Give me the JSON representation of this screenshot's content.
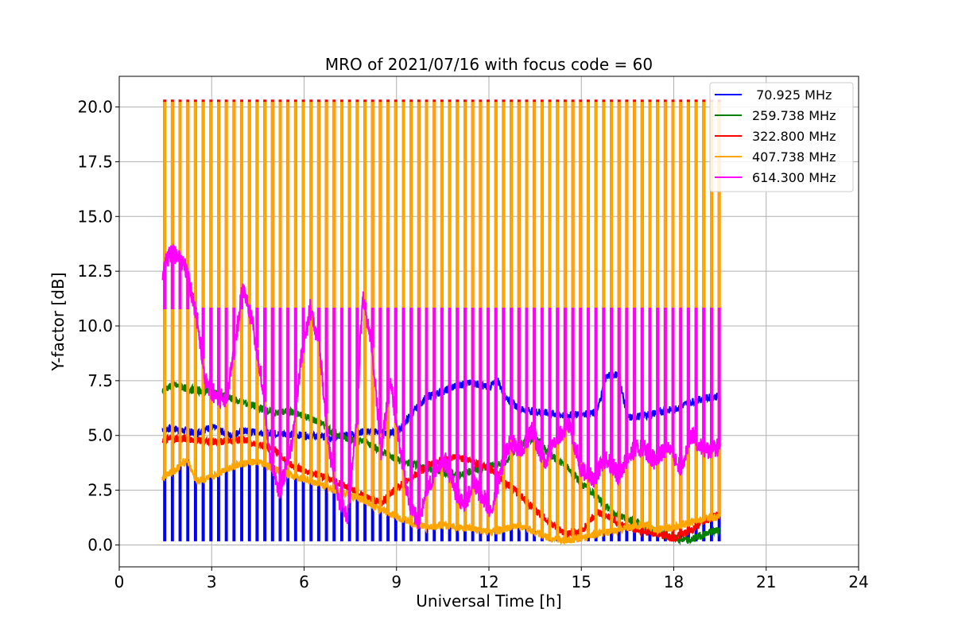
{
  "chart_data": {
    "type": "line",
    "title": "MRO of 2021/07/16 with focus code = 60",
    "xlabel": "Universal Time [h]",
    "ylabel": "Y-factor [dB]",
    "xlim": [
      0,
      24
    ],
    "ylim": [
      -1.0,
      21.4
    ],
    "xticks": [
      0,
      3,
      6,
      9,
      12,
      15,
      18,
      21,
      24
    ],
    "xtick_labels": [
      "0",
      "3",
      "6",
      "9",
      "12",
      "15",
      "18",
      "21",
      "24"
    ],
    "yticks": [
      0.0,
      2.5,
      5.0,
      7.5,
      10.0,
      12.5,
      15.0,
      17.5,
      20.0
    ],
    "ytick_labels": [
      "0.0",
      "2.5",
      "5.0",
      "7.5",
      "10.0",
      "12.5",
      "15.0",
      "17.5",
      "20.0"
    ],
    "grid": true,
    "legend_position": "top-right",
    "spike_times": {
      "start": 1.45,
      "end": 19.5,
      "step": 0.25
    },
    "series": [
      {
        "name": " 70.925 MHz",
        "color": "#0000ff",
        "spike_value": 0.2,
        "x": [
          1.4,
          1.8,
          2.5,
          3.0,
          3.3,
          3.6,
          4.0,
          5.0,
          6.0,
          7.0,
          8.0,
          9.0,
          9.5,
          10.0,
          10.5,
          11.0,
          11.5,
          12.0,
          12.3,
          12.5,
          13.0,
          14.0,
          14.5,
          15.0,
          15.5,
          15.8,
          16.2,
          16.5,
          17.0,
          18.0,
          18.5,
          19.0,
          19.5
        ],
        "y": [
          null,
          5.3,
          5.1,
          5.4,
          5.2,
          5.0,
          5.2,
          5.1,
          5.0,
          4.9,
          5.2,
          5.1,
          6.0,
          6.8,
          7.0,
          7.3,
          7.4,
          7.2,
          7.5,
          6.8,
          6.2,
          6.0,
          5.9,
          6.0,
          6.0,
          7.7,
          7.8,
          5.8,
          5.9,
          6.2,
          6.5,
          6.7,
          6.8
        ]
      },
      {
        "name": "259.738 MHz",
        "color": "#008000",
        "spike_value": null,
        "x": [
          1.4,
          1.8,
          2.3,
          3.0,
          3.8,
          4.5,
          5.0,
          5.5,
          6.0,
          6.5,
          7.0,
          7.5,
          8.0,
          8.5,
          9.0,
          9.5,
          10.0,
          10.5,
          11.0,
          11.5,
          12.0,
          12.5,
          13.0,
          13.5,
          14.0,
          14.5,
          15.0,
          15.5,
          16.0,
          16.5,
          17.0,
          17.5,
          18.0,
          18.5,
          19.0,
          19.5
        ],
        "y": [
          7.1,
          7.3,
          7.1,
          7.0,
          6.6,
          6.3,
          6.0,
          6.1,
          5.9,
          5.6,
          5.1,
          4.8,
          4.7,
          4.3,
          3.9,
          3.7,
          3.5,
          3.3,
          3.2,
          3.4,
          3.6,
          3.7,
          4.6,
          4.9,
          4.1,
          3.6,
          2.8,
          2.2,
          1.5,
          1.2,
          0.9,
          0.6,
          0.3,
          0.2,
          0.5,
          0.7
        ]
      },
      {
        "name": "322.800 MHz",
        "color": "#ff0000",
        "spike_value": 20.3,
        "x": [
          1.4,
          2.0,
          3.0,
          4.0,
          4.5,
          5.0,
          5.5,
          6.0,
          6.5,
          7.0,
          7.5,
          8.0,
          8.5,
          9.0,
          9.5,
          10.0,
          10.5,
          11.0,
          11.5,
          12.0,
          12.5,
          13.0,
          13.5,
          14.0,
          14.5,
          15.0,
          15.5,
          16.0,
          16.5,
          17.0,
          17.5,
          18.0,
          18.5,
          19.0,
          19.5
        ],
        "y": [
          4.8,
          4.9,
          4.7,
          4.8,
          4.6,
          4.4,
          3.7,
          3.4,
          3.2,
          2.9,
          2.6,
          2.2,
          1.9,
          2.6,
          3.1,
          3.6,
          3.9,
          4.0,
          3.8,
          3.5,
          2.9,
          2.3,
          1.6,
          1.0,
          0.5,
          0.6,
          1.5,
          1.2,
          0.8,
          0.6,
          0.5,
          0.3,
          0.6,
          1.1,
          1.4
        ]
      },
      {
        "name": "407.738 MHz",
        "color": "#ffa500",
        "spike_value": 20.2,
        "x": [
          1.4,
          1.8,
          2.2,
          2.5,
          3.0,
          3.5,
          4.0,
          4.5,
          5.0,
          5.5,
          6.0,
          6.5,
          7.0,
          7.5,
          8.0,
          8.5,
          9.0,
          9.5,
          10.0,
          10.5,
          11.0,
          11.5,
          12.0,
          12.5,
          13.0,
          13.5,
          14.0,
          14.5,
          15.0,
          15.5,
          16.0,
          16.5,
          17.0,
          17.5,
          18.0,
          18.5,
          19.0,
          19.5
        ],
        "y": [
          3.1,
          3.4,
          3.9,
          2.9,
          3.1,
          3.5,
          3.7,
          3.8,
          3.5,
          3.2,
          3.0,
          2.8,
          2.5,
          2.3,
          2.0,
          1.6,
          1.3,
          1.0,
          0.8,
          0.9,
          0.8,
          0.7,
          0.6,
          0.7,
          0.9,
          0.6,
          0.3,
          0.2,
          0.3,
          0.5,
          0.6,
          0.8,
          0.9,
          0.7,
          0.8,
          1.0,
          1.2,
          1.3
        ]
      },
      {
        "name": "614.300 MHz",
        "color": "#ff00ff",
        "spike_value": 10.8,
        "x": [
          1.4,
          1.6,
          1.9,
          2.2,
          2.5,
          2.8,
          3.2,
          3.5,
          3.8,
          4.0,
          4.3,
          4.6,
          4.9,
          5.2,
          5.6,
          5.9,
          6.2,
          6.5,
          6.8,
          7.1,
          7.4,
          7.7,
          7.9,
          8.2,
          8.5,
          8.8,
          9.1,
          9.4,
          9.7,
          10.0,
          10.3,
          10.6,
          10.9,
          11.2,
          11.5,
          11.8,
          12.1,
          12.4,
          12.7,
          13.0,
          13.4,
          13.8,
          14.2,
          14.6,
          15.0,
          15.4,
          15.8,
          16.2,
          16.6,
          17.0,
          17.4,
          17.8,
          18.2,
          18.6,
          19.0,
          19.5
        ],
        "y": [
          12.5,
          13.2,
          13.3,
          12.5,
          10.5,
          7.5,
          6.6,
          6.8,
          9.5,
          11.8,
          10.2,
          7.8,
          4.0,
          2.4,
          4.5,
          8.5,
          10.8,
          9.0,
          4.5,
          2.2,
          1.2,
          5.5,
          11.5,
          9.0,
          4.3,
          7.5,
          4.5,
          2.0,
          1.0,
          2.5,
          3.5,
          3.8,
          2.5,
          1.8,
          2.8,
          2.2,
          1.5,
          3.5,
          4.8,
          4.2,
          5.2,
          3.8,
          4.8,
          5.5,
          3.5,
          3.0,
          4.0,
          3.2,
          4.2,
          4.5,
          3.8,
          4.6,
          3.5,
          5.0,
          4.3,
          4.5
        ]
      }
    ]
  }
}
